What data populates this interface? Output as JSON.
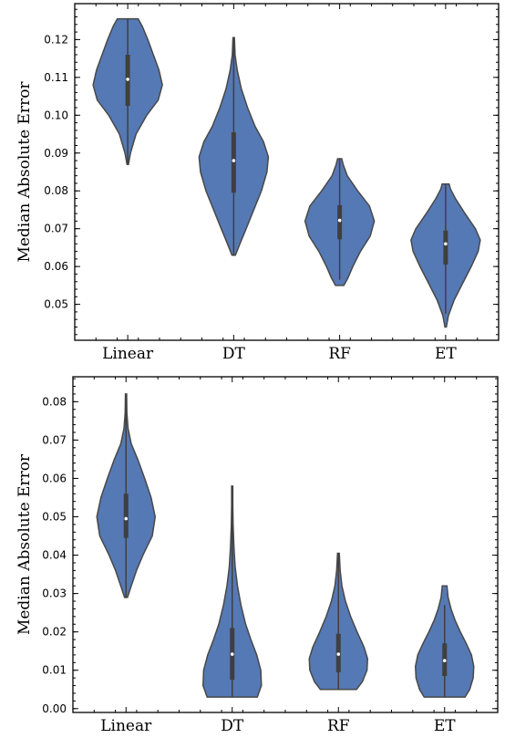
{
  "chart_data": [
    {
      "type": "violin",
      "categories": [
        "Linear",
        "DT",
        "RF",
        "ET"
      ],
      "ylabel": "Median Absolute Error",
      "ylim": [
        0.0405,
        0.1295
      ],
      "yticks": [
        0.05,
        0.06,
        0.07,
        0.08,
        0.09,
        0.1,
        0.11,
        0.12
      ],
      "ytick_labels": [
        "0.05",
        "0.06",
        "0.07",
        "0.08",
        "0.09",
        "0.10",
        "0.11",
        "0.12"
      ],
      "color": "#4c72b0",
      "violins": [
        {
          "category": "Linear",
          "min": 0.087,
          "max": 0.1255,
          "q1": 0.1025,
          "median": 0.1095,
          "q3": 0.116,
          "whisker_low": 0.087,
          "whisker_high": 0.1255,
          "profile": [
            [
              0.087,
              0.02
            ],
            [
              0.09,
              0.08
            ],
            [
              0.095,
              0.24
            ],
            [
              0.1,
              0.55
            ],
            [
              0.104,
              0.88
            ],
            [
              0.108,
              1.0
            ],
            [
              0.112,
              0.9
            ],
            [
              0.116,
              0.74
            ],
            [
              0.12,
              0.58
            ],
            [
              0.1235,
              0.42
            ],
            [
              0.1255,
              0.3
            ]
          ]
        },
        {
          "category": "DT",
          "min": 0.063,
          "max": 0.1205,
          "q1": 0.0795,
          "median": 0.088,
          "q3": 0.0955,
          "whisker_low": 0.063,
          "whisker_high": 0.1205,
          "profile": [
            [
              0.063,
              0.05
            ],
            [
              0.066,
              0.18
            ],
            [
              0.07,
              0.36
            ],
            [
              0.075,
              0.58
            ],
            [
              0.08,
              0.8
            ],
            [
              0.085,
              0.96
            ],
            [
              0.089,
              1.0
            ],
            [
              0.093,
              0.86
            ],
            [
              0.097,
              0.62
            ],
            [
              0.102,
              0.4
            ],
            [
              0.107,
              0.22
            ],
            [
              0.112,
              0.1
            ],
            [
              0.116,
              0.04
            ],
            [
              0.1205,
              0.02
            ]
          ]
        },
        {
          "category": "RF",
          "min": 0.055,
          "max": 0.0885,
          "q1": 0.0672,
          "median": 0.0722,
          "q3": 0.0762,
          "whisker_low": 0.0565,
          "whisker_high": 0.0885,
          "profile": [
            [
              0.055,
              0.12
            ],
            [
              0.057,
              0.24
            ],
            [
              0.06,
              0.38
            ],
            [
              0.064,
              0.6
            ],
            [
              0.068,
              0.88
            ],
            [
              0.072,
              1.0
            ],
            [
              0.076,
              0.86
            ],
            [
              0.08,
              0.52
            ],
            [
              0.084,
              0.22
            ],
            [
              0.087,
              0.1
            ],
            [
              0.0885,
              0.06
            ]
          ]
        },
        {
          "category": "ET",
          "min": 0.044,
          "max": 0.0818,
          "q1": 0.0605,
          "median": 0.066,
          "q3": 0.0695,
          "whisker_low": 0.0475,
          "whisker_high": 0.0818,
          "profile": [
            [
              0.044,
              0.02
            ],
            [
              0.047,
              0.08
            ],
            [
              0.051,
              0.24
            ],
            [
              0.055,
              0.46
            ],
            [
              0.06,
              0.74
            ],
            [
              0.064,
              0.94
            ],
            [
              0.067,
              1.0
            ],
            [
              0.07,
              0.86
            ],
            [
              0.074,
              0.56
            ],
            [
              0.078,
              0.28
            ],
            [
              0.0805,
              0.14
            ],
            [
              0.0818,
              0.1
            ]
          ]
        }
      ]
    },
    {
      "type": "violin",
      "categories": [
        "Linear",
        "DT",
        "RF",
        "ET"
      ],
      "ylabel": "Median Absolute Error",
      "ylim": [
        -0.001,
        0.0865
      ],
      "yticks": [
        0.0,
        0.01,
        0.02,
        0.03,
        0.04,
        0.05,
        0.06,
        0.07,
        0.08
      ],
      "ytick_labels": [
        "0.00",
        "0.01",
        "0.02",
        "0.03",
        "0.04",
        "0.05",
        "0.06",
        "0.07",
        "0.08"
      ],
      "color": "#4c72b0",
      "violins": [
        {
          "category": "Linear",
          "min": 0.029,
          "max": 0.082,
          "q1": 0.0445,
          "median": 0.0495,
          "q3": 0.056,
          "whisker_low": 0.029,
          "whisker_high": 0.082,
          "profile": [
            [
              0.029,
              0.05
            ],
            [
              0.032,
              0.18
            ],
            [
              0.036,
              0.36
            ],
            [
              0.04,
              0.58
            ],
            [
              0.045,
              0.9
            ],
            [
              0.05,
              1.0
            ],
            [
              0.055,
              0.86
            ],
            [
              0.06,
              0.64
            ],
            [
              0.065,
              0.4
            ],
            [
              0.069,
              0.18
            ],
            [
              0.073,
              0.07
            ],
            [
              0.077,
              0.03
            ],
            [
              0.082,
              0.02
            ]
          ]
        },
        {
          "category": "DT",
          "min": 0.003,
          "max": 0.058,
          "q1": 0.0075,
          "median": 0.0142,
          "q3": 0.021,
          "whisker_low": 0.003,
          "whisker_high": 0.058,
          "profile": [
            [
              0.003,
              0.86
            ],
            [
              0.006,
              1.0
            ],
            [
              0.01,
              0.98
            ],
            [
              0.014,
              0.84
            ],
            [
              0.018,
              0.64
            ],
            [
              0.022,
              0.46
            ],
            [
              0.027,
              0.3
            ],
            [
              0.032,
              0.18
            ],
            [
              0.037,
              0.1
            ],
            [
              0.042,
              0.06
            ],
            [
              0.048,
              0.03
            ],
            [
              0.053,
              0.02
            ],
            [
              0.058,
              0.02
            ]
          ]
        },
        {
          "category": "RF",
          "min": 0.005,
          "max": 0.0405,
          "q1": 0.0095,
          "median": 0.0142,
          "q3": 0.0195,
          "whisker_low": 0.005,
          "whisker_high": 0.0405,
          "profile": [
            [
              0.005,
              0.62
            ],
            [
              0.007,
              0.82
            ],
            [
              0.01,
              0.98
            ],
            [
              0.013,
              1.0
            ],
            [
              0.016,
              0.88
            ],
            [
              0.02,
              0.64
            ],
            [
              0.024,
              0.42
            ],
            [
              0.028,
              0.24
            ],
            [
              0.032,
              0.12
            ],
            [
              0.036,
              0.06
            ],
            [
              0.0405,
              0.03
            ]
          ]
        },
        {
          "category": "ET",
          "min": 0.003,
          "max": 0.032,
          "q1": 0.0085,
          "median": 0.0125,
          "q3": 0.017,
          "whisker_low": 0.003,
          "whisker_high": 0.027,
          "profile": [
            [
              0.003,
              0.7
            ],
            [
              0.005,
              0.86
            ],
            [
              0.008,
              0.98
            ],
            [
              0.011,
              1.0
            ],
            [
              0.014,
              0.92
            ],
            [
              0.017,
              0.74
            ],
            [
              0.02,
              0.54
            ],
            [
              0.023,
              0.36
            ],
            [
              0.026,
              0.22
            ],
            [
              0.029,
              0.12
            ],
            [
              0.032,
              0.08
            ]
          ]
        }
      ]
    }
  ]
}
